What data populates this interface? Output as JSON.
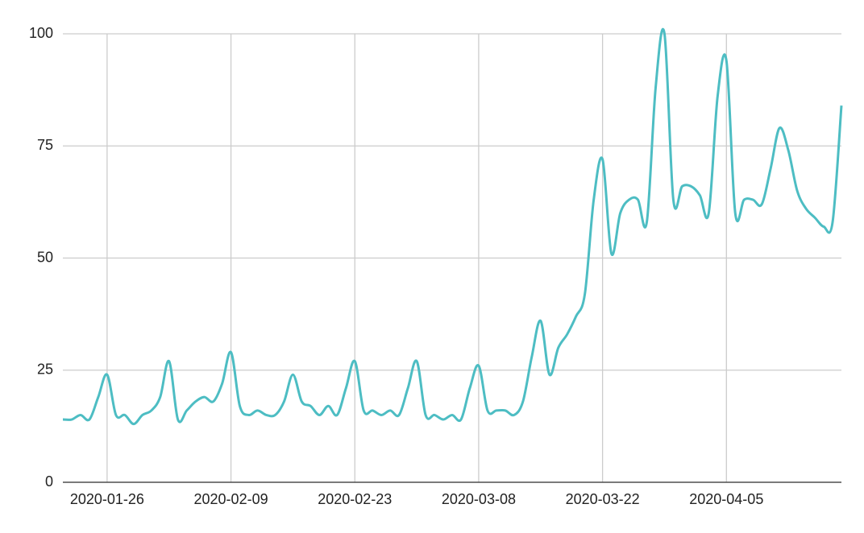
{
  "chart_data": {
    "type": "line",
    "x": [
      "2020-01-21",
      "2020-01-22",
      "2020-01-23",
      "2020-01-24",
      "2020-01-25",
      "2020-01-26",
      "2020-01-27",
      "2020-01-28",
      "2020-01-29",
      "2020-01-30",
      "2020-01-31",
      "2020-02-01",
      "2020-02-02",
      "2020-02-03",
      "2020-02-04",
      "2020-02-05",
      "2020-02-06",
      "2020-02-07",
      "2020-02-08",
      "2020-02-09",
      "2020-02-10",
      "2020-02-11",
      "2020-02-12",
      "2020-02-13",
      "2020-02-14",
      "2020-02-15",
      "2020-02-16",
      "2020-02-17",
      "2020-02-18",
      "2020-02-19",
      "2020-02-20",
      "2020-02-21",
      "2020-02-22",
      "2020-02-23",
      "2020-02-24",
      "2020-02-25",
      "2020-02-26",
      "2020-02-27",
      "2020-02-28",
      "2020-02-29",
      "2020-03-01",
      "2020-03-02",
      "2020-03-03",
      "2020-03-04",
      "2020-03-05",
      "2020-03-06",
      "2020-03-07",
      "2020-03-08",
      "2020-03-09",
      "2020-03-10",
      "2020-03-11",
      "2020-03-12",
      "2020-03-13",
      "2020-03-14",
      "2020-03-15",
      "2020-03-16",
      "2020-03-17",
      "2020-03-18",
      "2020-03-19",
      "2020-03-20",
      "2020-03-21",
      "2020-03-22",
      "2020-03-23",
      "2020-03-24",
      "2020-03-25",
      "2020-03-26",
      "2020-03-27",
      "2020-03-28",
      "2020-03-29",
      "2020-03-30",
      "2020-03-31",
      "2020-04-01",
      "2020-04-02",
      "2020-04-03",
      "2020-04-04",
      "2020-04-05",
      "2020-04-06",
      "2020-04-07",
      "2020-04-08",
      "2020-04-09",
      "2020-04-10",
      "2020-04-11",
      "2020-04-12",
      "2020-04-13",
      "2020-04-14",
      "2020-04-15",
      "2020-04-16",
      "2020-04-17",
      "2020-04-18"
    ],
    "series": [
      {
        "color": "#4dbdc3",
        "values": [
          14,
          14,
          15,
          14,
          19,
          24,
          15,
          15,
          13,
          15,
          16,
          19,
          27,
          14,
          16,
          18,
          19,
          18,
          22,
          29,
          17,
          15,
          16,
          15,
          15,
          18,
          24,
          18,
          17,
          15,
          17,
          15,
          21,
          27,
          16,
          16,
          15,
          16,
          15,
          21,
          27,
          15,
          15,
          14,
          15,
          14,
          21,
          26,
          16,
          16,
          16,
          15,
          18,
          28,
          36,
          24,
          30,
          33,
          37,
          42,
          63,
          72,
          51,
          60,
          63,
          63,
          58,
          88,
          100,
          63,
          66,
          66,
          64,
          60,
          86,
          94,
          60,
          63,
          63,
          62,
          70,
          79,
          74,
          65,
          61,
          59,
          57,
          58,
          84
        ]
      }
    ],
    "ylim": [
      0,
      100
    ],
    "yticks": [
      0,
      25,
      50,
      75,
      100
    ],
    "xticks": [
      "2020-01-26",
      "2020-02-09",
      "2020-02-23",
      "2020-03-08",
      "2020-03-22",
      "2020-04-05"
    ],
    "grid": true
  }
}
